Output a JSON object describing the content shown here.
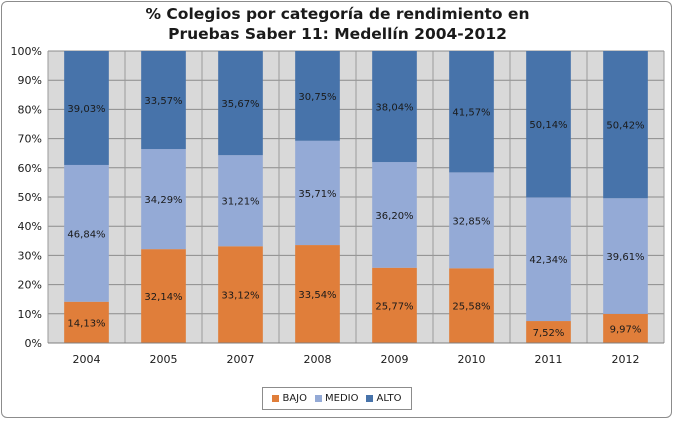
{
  "chart_data": {
    "type": "bar",
    "stacked": true,
    "title_lines": [
      "% Colegios por categoría de rendimiento en",
      "Pruebas Saber 11: Medellín 2004-2012"
    ],
    "categories": [
      "2004",
      "2005",
      "2007",
      "2008",
      "2009",
      "2010",
      "2011",
      "2012"
    ],
    "series": [
      {
        "name": "BAJO",
        "color": "#e07e3a",
        "values": [
          14.13,
          32.14,
          33.12,
          33.54,
          25.77,
          25.58,
          7.52,
          9.97
        ],
        "labels": [
          "14,13%",
          "32,14%",
          "33,12%",
          "33,54%",
          "25,77%",
          "25,58%",
          "7,52%",
          "9,97%"
        ]
      },
      {
        "name": "MEDIO",
        "color": "#94aad6",
        "values": [
          46.84,
          34.29,
          31.21,
          35.71,
          36.2,
          32.85,
          42.34,
          39.61
        ],
        "labels": [
          "46,84%",
          "34,29%",
          "31,21%",
          "35,71%",
          "36,20%",
          "32,85%",
          "42,34%",
          "39,61%"
        ]
      },
      {
        "name": "ALTO",
        "color": "#4773aa",
        "values": [
          39.03,
          33.57,
          35.67,
          30.75,
          38.04,
          41.57,
          50.14,
          50.42
        ],
        "labels": [
          "39,03%",
          "33,57%",
          "35,67%",
          "30,75%",
          "38,04%",
          "41,57%",
          "50,14%",
          "50,42%"
        ]
      }
    ],
    "y_ticks": [
      "0%",
      "10%",
      "20%",
      "30%",
      "40%",
      "50%",
      "60%",
      "70%",
      "80%",
      "90%",
      "100%"
    ],
    "ylim": [
      0,
      100
    ],
    "grid": true,
    "plot_background": "#d9d9d9",
    "legend_position": "bottom"
  }
}
